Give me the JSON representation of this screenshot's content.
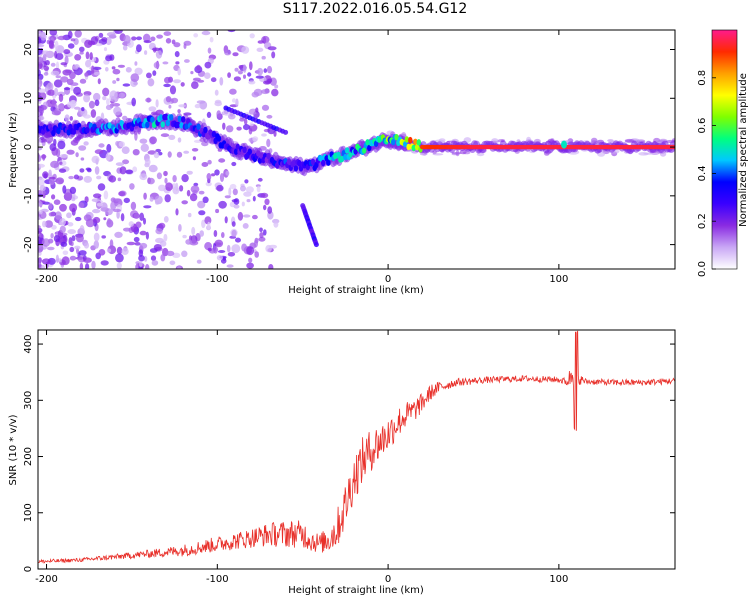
{
  "title": "S117.2022.016.05.54.G12",
  "chart_data": [
    {
      "type": "heatmap",
      "title": "",
      "xlabel": "Height of straight line (km)",
      "ylabel": "Frequency (Hz)",
      "xlim": [
        -205,
        168
      ],
      "ylim": [
        -25,
        24
      ],
      "x_ticks": [
        -200,
        -100,
        0,
        100
      ],
      "y_ticks": [
        -20,
        -10,
        0,
        10,
        20
      ],
      "colorbar": {
        "label": "Normalized spectral amplitude",
        "range": [
          0.0,
          1.0
        ],
        "ticks": [
          0.0,
          0.2,
          0.4,
          0.6,
          0.8
        ],
        "colors": [
          "#ffffff",
          "#c9a7f5",
          "#8a2be2",
          "#3a00ff",
          "#0000ff",
          "#00c8ff",
          "#00ff80",
          "#7fff00",
          "#ffff00",
          "#ffa000",
          "#ff2a00",
          "#ff1a8c"
        ]
      },
      "ridge": {
        "x": [
          -200,
          -180,
          -160,
          -140,
          -130,
          -120,
          -110,
          -100,
          -90,
          -80,
          -70,
          -60,
          -50,
          -45,
          -40,
          -30,
          -20,
          -10,
          0,
          10,
          20,
          50,
          100,
          168
        ],
        "y": [
          3.6,
          3.7,
          4.0,
          5.2,
          5.5,
          5.0,
          3.5,
          1.5,
          -0.5,
          -1.5,
          -2.5,
          -3.5,
          -4.0,
          -4.0,
          -3.0,
          -2.0,
          -1.0,
          0.5,
          1.5,
          1.0,
          0.0,
          0.0,
          0.0,
          0.0
        ],
        "amplitude": [
          0.3,
          0.35,
          0.4,
          0.45,
          0.45,
          0.4,
          0.35,
          0.3,
          0.3,
          0.3,
          0.3,
          0.35,
          0.35,
          0.35,
          0.4,
          0.45,
          0.5,
          0.55,
          0.6,
          0.7,
          0.9,
          0.95,
          0.95,
          0.95
        ]
      }
    },
    {
      "type": "line",
      "title": "",
      "xlabel": "Height of straight line (km)",
      "ylabel": "SNR (10 * v/v)",
      "xlim": [
        -205,
        168
      ],
      "ylim": [
        0,
        425
      ],
      "x_ticks": [
        -200,
        -100,
        0,
        100
      ],
      "y_ticks": [
        0,
        100,
        200,
        300,
        400
      ],
      "series": [
        {
          "color": "#e8302a",
          "x": [
            -205,
            -180,
            -160,
            -140,
            -120,
            -100,
            -90,
            -80,
            -70,
            -60,
            -50,
            -45,
            -40,
            -35,
            -30,
            -25,
            -20,
            -15,
            -10,
            -5,
            0,
            5,
            10,
            15,
            20,
            25,
            30,
            40,
            60,
            80,
            100,
            105,
            108,
            110,
            112,
            115,
            130,
            150,
            168
          ],
          "y": [
            12,
            15,
            20,
            25,
            30,
            40,
            45,
            50,
            55,
            55,
            55,
            45,
            40,
            45,
            60,
            100,
            150,
            180,
            200,
            215,
            230,
            250,
            265,
            275,
            290,
            310,
            320,
            330,
            335,
            337,
            335,
            330,
            340,
            330,
            335,
            332,
            330,
            330,
            333
          ],
          "noise_amplitude": [
            5,
            5,
            7,
            10,
            15,
            20,
            22,
            25,
            30,
            35,
            35,
            30,
            25,
            35,
            50,
            60,
            60,
            60,
            55,
            50,
            45,
            40,
            35,
            30,
            25,
            20,
            15,
            10,
            8,
            8,
            8,
            10,
            45,
            45,
            15,
            8,
            8,
            8,
            8
          ]
        }
      ]
    }
  ]
}
